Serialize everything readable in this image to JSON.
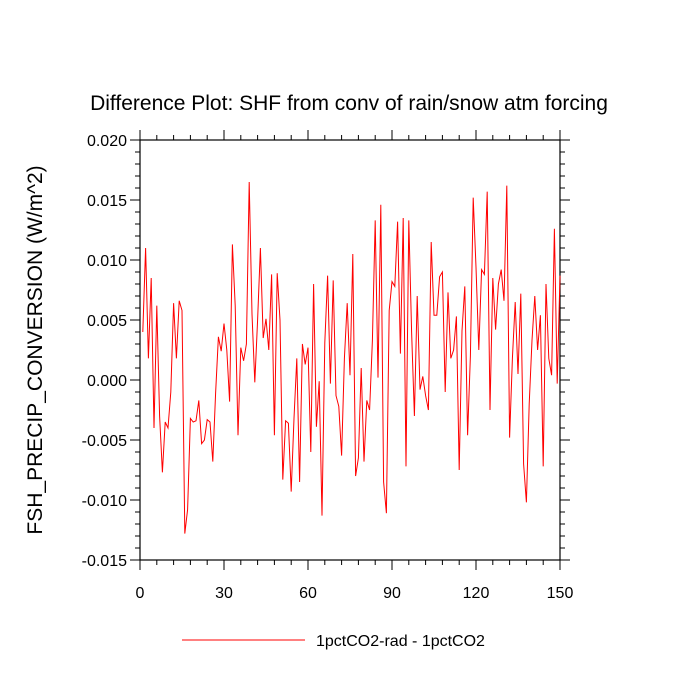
{
  "chart_data": {
    "type": "line",
    "title": "Difference Plot: SHF from conv of rain/snow atm forcing",
    "xlabel": "",
    "ylabel": "FSH_PRECIP_CONVERSION  (W/m^2)",
    "xlim": [
      0,
      150
    ],
    "ylim": [
      -0.015,
      0.02
    ],
    "xticks": [
      0,
      30,
      60,
      90,
      120,
      150
    ],
    "xtick_labels": [
      "0",
      "30",
      "60",
      "90",
      "120",
      "150"
    ],
    "yticks": [
      -0.015,
      -0.01,
      -0.005,
      0.0,
      0.005,
      0.01,
      0.015,
      0.02
    ],
    "ytick_labels": [
      "-0.015",
      "-0.010",
      "-0.005",
      "0.000",
      "0.005",
      "0.010",
      "0.015",
      "0.020"
    ],
    "grid": false,
    "legend_position": "bottom-center",
    "series": [
      {
        "name": "1pctCO2-rad - 1pctCO2",
        "color": "#ff0000",
        "x": [
          1,
          2,
          3,
          4,
          5,
          6,
          7,
          8,
          9,
          10,
          11,
          12,
          13,
          14,
          15,
          16,
          17,
          18,
          19,
          20,
          21,
          22,
          23,
          24,
          25,
          26,
          27,
          28,
          29,
          30,
          31,
          32,
          33,
          34,
          35,
          36,
          37,
          38,
          39,
          40,
          41,
          42,
          43,
          44,
          45,
          46,
          47,
          48,
          49,
          50,
          51,
          52,
          53,
          54,
          55,
          56,
          57,
          58,
          59,
          60,
          61,
          62,
          63,
          64,
          65,
          66,
          67,
          68,
          69,
          70,
          71,
          72,
          73,
          74,
          75,
          76,
          77,
          78,
          79,
          80,
          81,
          82,
          83,
          84,
          85,
          86,
          87,
          88,
          89,
          90,
          91,
          92,
          93,
          94,
          95,
          96,
          97,
          98,
          99,
          100,
          101,
          102,
          103,
          104,
          105,
          106,
          107,
          108,
          109,
          110,
          111,
          112,
          113,
          114,
          115,
          116,
          117,
          118,
          119,
          120,
          121,
          122,
          123,
          124,
          125,
          126,
          127,
          128,
          129,
          130,
          131,
          132,
          133,
          134,
          135,
          136,
          137,
          138,
          139,
          140,
          141,
          142,
          143,
          144,
          145,
          146,
          147,
          148,
          149,
          150
        ],
        "values": [
          0.004,
          0.011,
          0.0018,
          0.0085,
          -0.004,
          0.0062,
          -0.003,
          -0.0077,
          -0.0035,
          -0.004,
          -0.001,
          0.0064,
          0.0018,
          0.0066,
          0.0058,
          -0.0128,
          -0.0108,
          -0.0032,
          -0.0035,
          -0.0034,
          -0.0017,
          -0.0053,
          -0.005,
          -0.0033,
          -0.0035,
          -0.0068,
          -0.0011,
          0.0036,
          0.0024,
          0.0047,
          0.0025,
          -0.0018,
          0.0113,
          0.0062,
          -0.0046,
          0.0027,
          0.0016,
          0.003,
          0.0165,
          0.0055,
          -0.0002,
          0.005,
          0.011,
          0.0035,
          0.0051,
          0.0025,
          0.0088,
          -0.0046,
          0.0089,
          0.005,
          -0.0083,
          -0.0034,
          -0.0036,
          -0.0093,
          -0.0032,
          0.0018,
          -0.0085,
          0.003,
          0.0013,
          0.0027,
          -0.006,
          0.008,
          -0.0039,
          -0.0001,
          -0.0113,
          0.0031,
          0.0087,
          -0.0003,
          0.0083,
          -0.0013,
          -0.0022,
          -0.0063,
          0.0018,
          0.0064,
          0.0004,
          0.0105,
          -0.008,
          -0.0065,
          0.001,
          -0.0068,
          -0.0017,
          -0.0025,
          0.0033,
          0.0133,
          0.0002,
          0.0146,
          -0.0085,
          -0.0111,
          0.0058,
          0.0082,
          0.0078,
          0.0132,
          0.0022,
          0.0135,
          -0.0072,
          0.0133,
          0.004,
          -0.003,
          0.007,
          -0.0008,
          0.0003,
          -0.0013,
          -0.0025,
          0.0115,
          0.0054,
          0.0054,
          0.0086,
          0.009,
          -0.001,
          0.0073,
          0.0018,
          0.0025,
          0.0053,
          -0.0075,
          0.0041,
          0.0078,
          -0.0046,
          0.002,
          0.0152,
          0.0094,
          0.0025,
          0.0092,
          0.0088,
          0.0157,
          -0.0025,
          0.0085,
          0.0042,
          0.008,
          0.0092,
          0.0066,
          0.0162,
          -0.0048,
          0.0018,
          0.0065,
          0.0005,
          0.0072,
          -0.007,
          -0.0102,
          -0.002,
          0.0033,
          0.007,
          0.0025,
          0.0054,
          -0.0072,
          0.008,
          0.0018,
          0.0004,
          0.0126,
          -0.0003,
          0.0087
        ]
      }
    ]
  }
}
